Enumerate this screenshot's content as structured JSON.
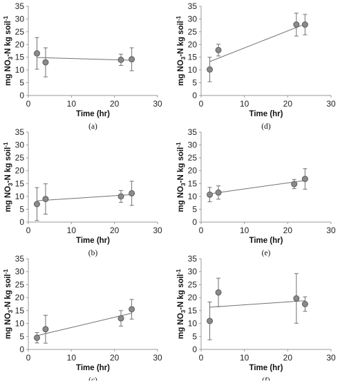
{
  "figure": {
    "chart_data": [
      {
        "type": "scatter",
        "panel": "(a)",
        "xlabel": "Time (hr)",
        "ylabel_prefix": "mg NO",
        "ylabel_suffix": "-N kg soil",
        "xlim": [
          0,
          30
        ],
        "ylim": [
          0,
          35
        ],
        "xticks": [
          0,
          10,
          20,
          30
        ],
        "yticks": [
          0,
          5,
          10,
          15,
          20,
          25,
          30,
          35
        ],
        "points": [
          {
            "x": 2,
            "y": 16.5,
            "err": 6.2
          },
          {
            "x": 4,
            "y": 13.0,
            "err": 5.7
          },
          {
            "x": 21.5,
            "y": 14.0,
            "err": 2.2
          },
          {
            "x": 24,
            "y": 14.2,
            "err": 4.5
          }
        ],
        "trendline": {
          "x": [
            2,
            24
          ],
          "y": [
            14.9,
            13.8
          ]
        }
      },
      {
        "type": "scatter",
        "panel": "(d)",
        "xlabel": "Time (hr)",
        "ylabel_prefix": "mg NO",
        "ylabel_suffix": "-N kg soil",
        "xlim": [
          0,
          30
        ],
        "ylim": [
          0,
          35
        ],
        "xticks": [
          0,
          10,
          20,
          30
        ],
        "yticks": [
          0,
          5,
          10,
          15,
          20,
          25,
          30,
          35
        ],
        "points": [
          {
            "x": 2,
            "y": 10.2,
            "err": 4.8
          },
          {
            "x": 4,
            "y": 17.8,
            "err": 2.3
          },
          {
            "x": 22,
            "y": 27.8,
            "err": 4.5
          },
          {
            "x": 24,
            "y": 27.8,
            "err": 4.0
          }
        ],
        "trendline": {
          "x": [
            2,
            24
          ],
          "y": [
            13.3,
            28.0
          ]
        }
      },
      {
        "type": "scatter",
        "panel": "(b)",
        "xlabel": "Time (hr)",
        "ylabel_prefix": "mg NO",
        "ylabel_suffix": "-N kg soil",
        "xlim": [
          0,
          30
        ],
        "ylim": [
          0,
          35
        ],
        "xticks": [
          0,
          10,
          20,
          30
        ],
        "yticks": [
          0,
          5,
          10,
          15,
          20,
          25,
          30,
          35
        ],
        "points": [
          {
            "x": 2,
            "y": 7.0,
            "err": 6.4
          },
          {
            "x": 4,
            "y": 9.0,
            "err": 5.9
          },
          {
            "x": 21.5,
            "y": 10.0,
            "err": 2.3
          },
          {
            "x": 24,
            "y": 11.2,
            "err": 4.7
          }
        ],
        "trendline": {
          "x": [
            2,
            24
          ],
          "y": [
            8.3,
            10.7
          ]
        }
      },
      {
        "type": "scatter",
        "panel": "(e)",
        "xlabel": "Time (hr)",
        "ylabel_prefix": "mg NO",
        "ylabel_suffix": "-N kg soil",
        "xlim": [
          0,
          30
        ],
        "ylim": [
          0,
          35
        ],
        "xticks": [
          0,
          10,
          20,
          30
        ],
        "yticks": [
          0,
          5,
          10,
          15,
          20,
          25,
          30,
          35
        ],
        "points": [
          {
            "x": 2,
            "y": 10.7,
            "err": 2.8
          },
          {
            "x": 4,
            "y": 11.5,
            "err": 2.6
          },
          {
            "x": 21.5,
            "y": 14.8,
            "err": 1.8
          },
          {
            "x": 24,
            "y": 16.8,
            "err": 4.0
          }
        ],
        "trendline": {
          "x": [
            2,
            24
          ],
          "y": [
            11.0,
            16.2
          ]
        }
      },
      {
        "type": "scatter",
        "panel": "(c)",
        "xlabel": "Time (hr)",
        "ylabel_prefix": "mg NO",
        "ylabel_suffix": "-N kg soil",
        "xlim": [
          0,
          30
        ],
        "ylim": [
          0,
          35
        ],
        "xticks": [
          0,
          10,
          20,
          30
        ],
        "yticks": [
          0,
          5,
          10,
          15,
          20,
          25,
          30,
          35
        ],
        "points": [
          {
            "x": 2,
            "y": 4.5,
            "err": 2.0
          },
          {
            "x": 4,
            "y": 7.8,
            "err": 5.4
          },
          {
            "x": 21.5,
            "y": 12.0,
            "err": 3.0
          },
          {
            "x": 24,
            "y": 15.5,
            "err": 3.8
          }
        ],
        "trendline": {
          "x": [
            2,
            24
          ],
          "y": [
            5.3,
            14.0
          ]
        }
      },
      {
        "type": "scatter",
        "panel": "(f)",
        "xlabel": "Time (hr)",
        "ylabel_prefix": "mg NO",
        "ylabel_suffix": "-N kg soil",
        "xlim": [
          0,
          30
        ],
        "ylim": [
          0,
          35
        ],
        "xticks": [
          0,
          10,
          20,
          30
        ],
        "yticks": [
          0,
          5,
          10,
          15,
          20,
          25,
          30,
          35
        ],
        "points": [
          {
            "x": 2,
            "y": 11.0,
            "err": 7.3
          },
          {
            "x": 4,
            "y": 22.0,
            "err": 5.5
          },
          {
            "x": 22,
            "y": 19.7,
            "err": 9.6
          },
          {
            "x": 24,
            "y": 17.5,
            "err": 2.8
          }
        ],
        "trendline": {
          "x": [
            2,
            24
          ],
          "y": [
            16.3,
            18.8
          ]
        }
      }
    ]
  },
  "colors": {
    "marker_fill": "#8a8a8a",
    "marker_stroke": "#5a5a5a",
    "axis": "#9a9a9a",
    "trendline": "#707070",
    "errorbar": "#707070"
  }
}
